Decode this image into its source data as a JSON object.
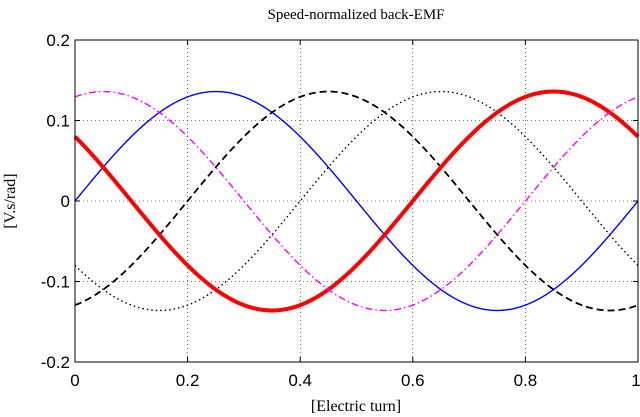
{
  "chart_data": {
    "type": "line",
    "title": "Speed-normalized back-EMF",
    "xlabel": "[Electric turn]",
    "ylabel": "[V.s/rad]",
    "xlim": [
      0,
      1
    ],
    "ylim": [
      -0.2,
      0.2
    ],
    "xticks": [
      "0",
      "0.2",
      "0.4",
      "0.6",
      "0.8",
      "1"
    ],
    "yticks": [
      "0.2",
      "0.1",
      "0",
      "-0.1",
      "-0.2"
    ],
    "grid": true,
    "grid_style": "dotted",
    "amplitude": 0.136,
    "series": [
      {
        "style": "solid",
        "color": "#0000ff",
        "width": "thin",
        "function": "sine",
        "phase_turns": 0.0
      },
      {
        "style": "dashed",
        "color": "#000000",
        "width": "medium",
        "function": "sine",
        "phase_turns": 0.2
      },
      {
        "style": "dotted",
        "color": "#000000",
        "width": "thin",
        "function": "sine",
        "phase_turns": 0.4
      },
      {
        "style": "solid",
        "color": "#ff0000",
        "width": "thick",
        "function": "sine",
        "phase_turns": 0.6
      },
      {
        "style": "dash-dot",
        "color": "#ff00ff",
        "width": "thin",
        "function": "sine",
        "phase_turns": 0.8
      }
    ]
  }
}
